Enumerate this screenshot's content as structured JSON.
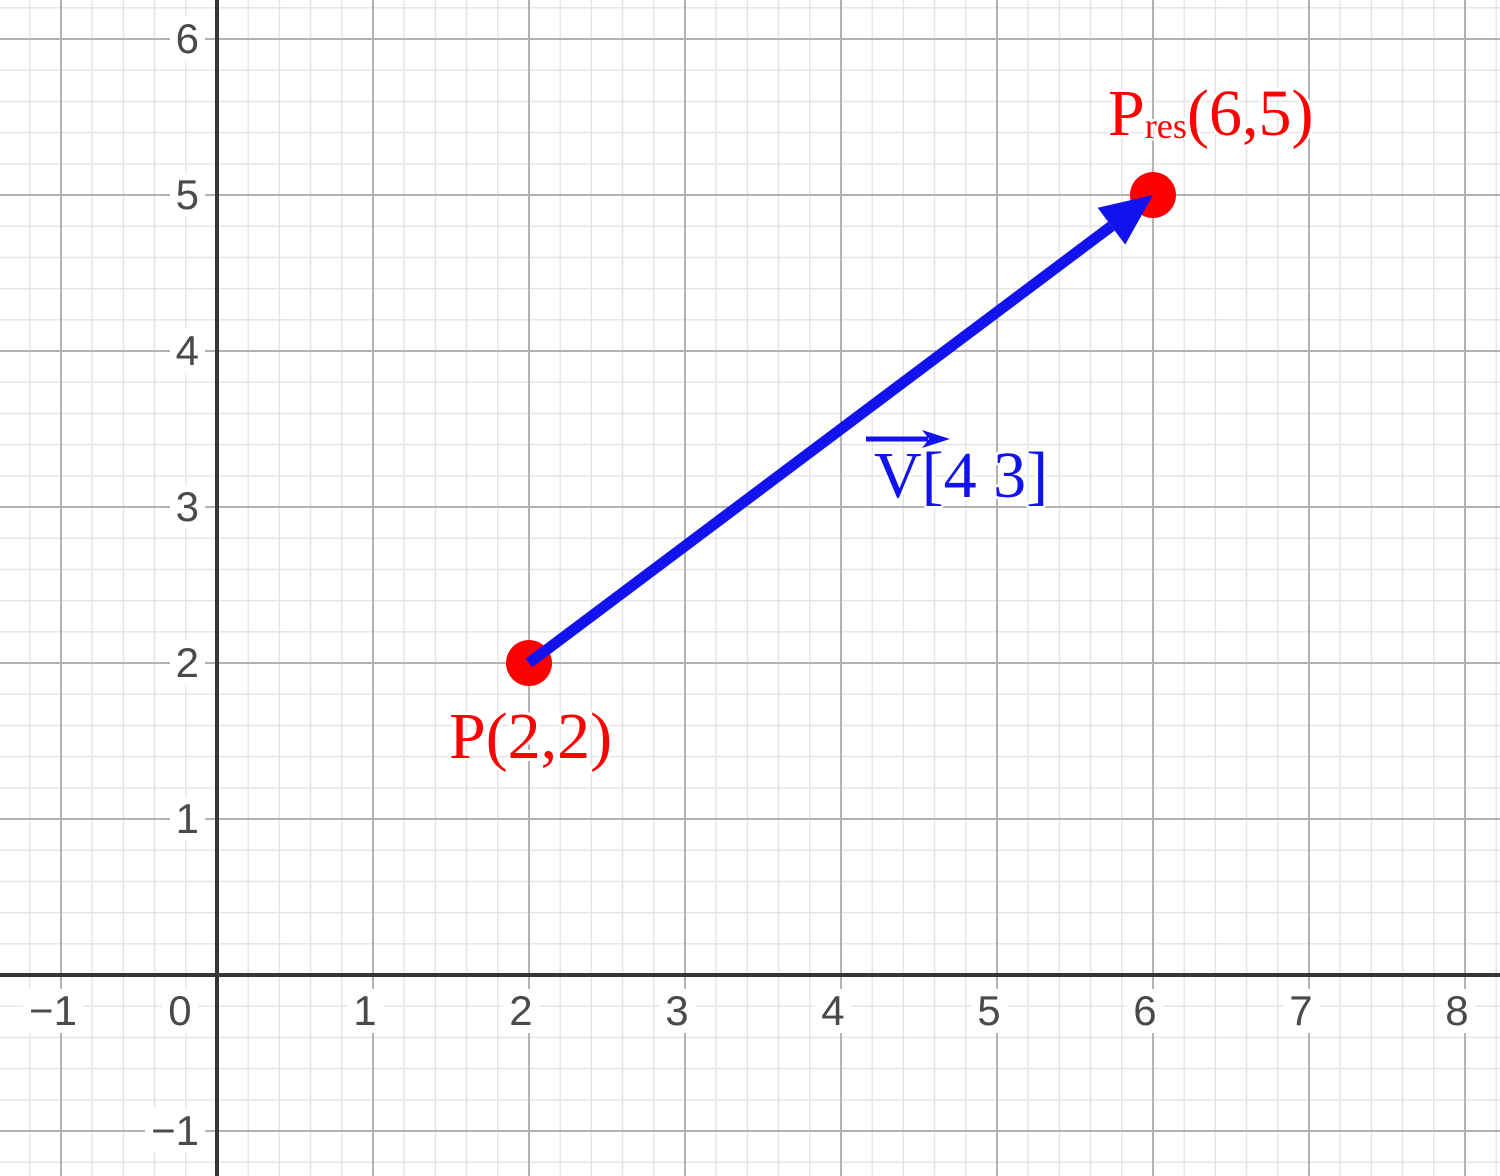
{
  "chart_data": {
    "type": "scatter",
    "title": "",
    "description": "Coordinate grid showing point P(2,2) translated by vector V[4 3] to resulting point Pres(6,5)",
    "axes": {
      "xmin": -1.391,
      "xmax": 8.2244,
      "ymin": -1.2885,
      "ymax": 6.25,
      "major_step": 1,
      "minor_step": 0.2,
      "grid": "on",
      "x_ticks": [
        {
          "v": -1,
          "label": "−1"
        },
        {
          "v": 0,
          "label": "0"
        },
        {
          "v": 1,
          "label": "1"
        },
        {
          "v": 2,
          "label": "2"
        },
        {
          "v": 3,
          "label": "3"
        },
        {
          "v": 4,
          "label": "4"
        },
        {
          "v": 5,
          "label": "5"
        },
        {
          "v": 6,
          "label": "6"
        },
        {
          "v": 7,
          "label": "7"
        },
        {
          "v": 8,
          "label": "8"
        }
      ],
      "y_ticks": [
        {
          "v": -1,
          "label": "−1"
        },
        {
          "v": 1,
          "label": "1"
        },
        {
          "v": 2,
          "label": "2"
        },
        {
          "v": 3,
          "label": "3"
        },
        {
          "v": 4,
          "label": "4"
        },
        {
          "v": 5,
          "label": "5"
        },
        {
          "v": 6,
          "label": "6"
        }
      ]
    },
    "points": [
      {
        "x": 2,
        "y": 2,
        "label": "P(2,2)",
        "color": "#ff0000"
      },
      {
        "x": 6,
        "y": 5,
        "label": "Pres(6,5)",
        "label_parts": {
          "base": "P",
          "sub": "res",
          "rest": "(6,5)"
        },
        "color": "#ff0000"
      }
    ],
    "vectors": [
      {
        "from": [
          2,
          2
        ],
        "to": [
          6,
          5
        ],
        "components": [
          4,
          3
        ],
        "label": "V[4 3]",
        "label_parts": {
          "base": "V",
          "rest": "[4 3]"
        },
        "color": "#1212ee"
      }
    ],
    "colors": {
      "background": "#ffffff",
      "axis": "#363636",
      "major_grid": "#b2b2b2",
      "minor_grid": "#e3e3e3",
      "tick_text": "#4a4a4a",
      "point": "#ff0000",
      "vector": "#1212ee"
    }
  }
}
